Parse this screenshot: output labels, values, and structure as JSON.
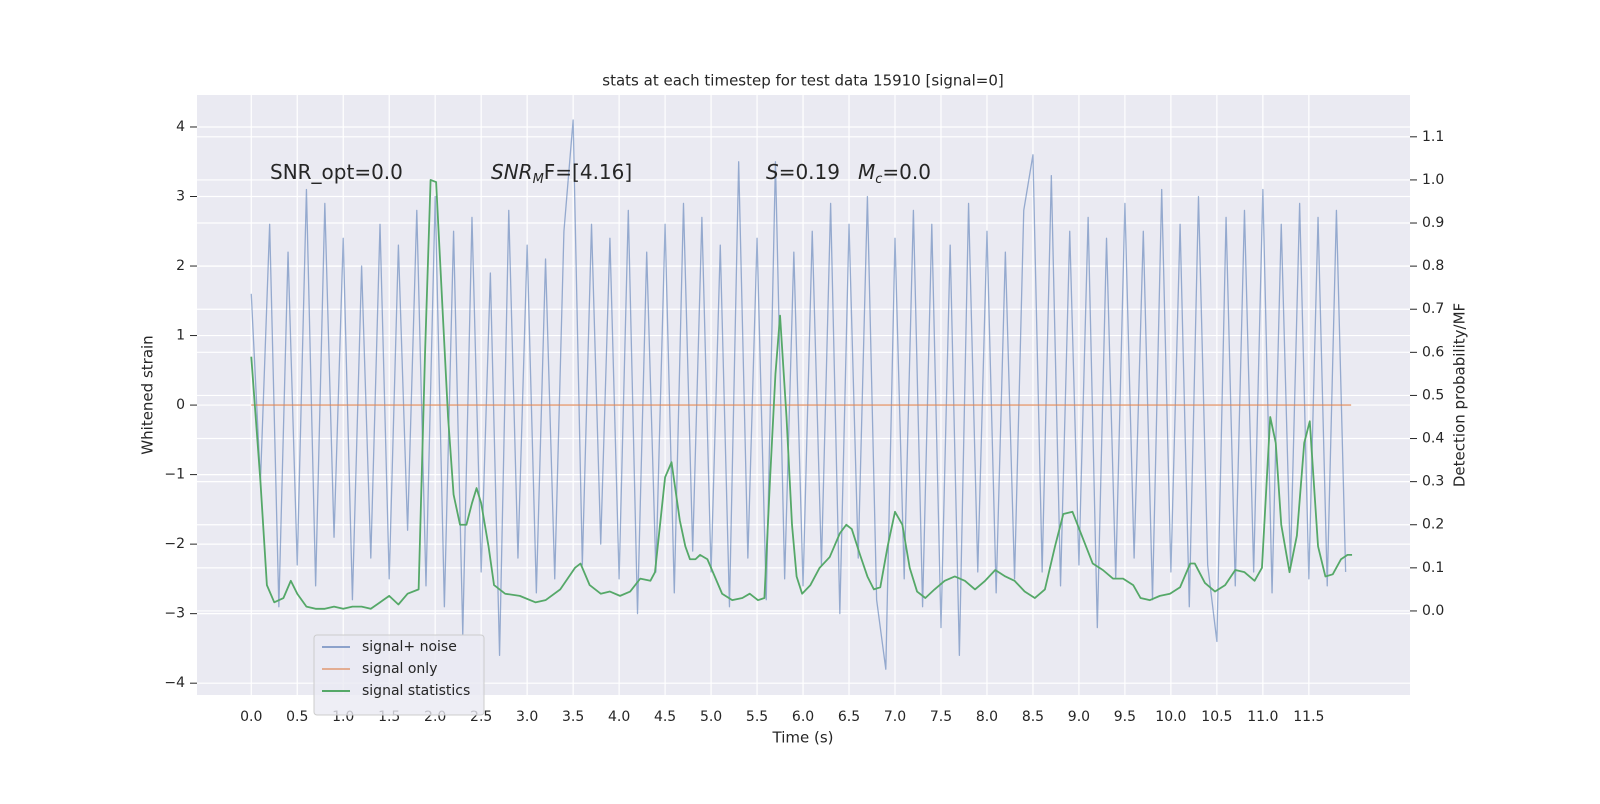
{
  "chart_data": {
    "type": "line",
    "title": "stats at each timestep for test data 15910 [signal=0]",
    "xlabel": "Time (s)",
    "ylabel": "Whitened strain",
    "y2label": "Detection probability/MF",
    "annotations": [
      {
        "base": "SNR_opt=0.0"
      },
      {
        "base": "SNR",
        "sub": "M",
        "tail": "F=[4.16]"
      },
      {
        "base": "S",
        "tail": "=0.19"
      },
      {
        "base": "M",
        "sub": "c",
        "tail": "=0.0"
      }
    ],
    "xlim": [
      -0.59,
      12.6
    ],
    "ylim": [
      -4.17,
      4.46
    ],
    "y2lim": [
      -0.195,
      1.197
    ],
    "xticks": [
      {
        "value": 0,
        "label": "0.0"
      },
      0.5,
      {
        "value": 1,
        "label": "1.0"
      },
      1.5,
      {
        "value": 2,
        "label": "2.0"
      },
      2.5,
      {
        "value": 3,
        "label": "3.0"
      },
      3.5,
      {
        "value": 4,
        "label": "4.0"
      },
      4.5,
      {
        "value": 5,
        "label": "5.0"
      },
      5.5,
      {
        "value": 6,
        "label": "6.0"
      },
      6.5,
      {
        "value": 7,
        "label": "7.0"
      },
      7.5,
      {
        "value": 8,
        "label": "8.0"
      },
      8.5,
      {
        "value": 9,
        "label": "9.0"
      },
      9.5,
      {
        "value": 10,
        "label": "10.0"
      },
      10.5,
      {
        "value": 11,
        "label": "11.0"
      },
      11.5
    ],
    "yticks": [
      {
        "value": -4,
        "label": "−4"
      },
      {
        "value": -3,
        "label": "−3"
      },
      {
        "value": -2,
        "label": "−2"
      },
      {
        "value": -1,
        "label": "−1"
      },
      0,
      1,
      2,
      3,
      4
    ],
    "y2ticks": [
      {
        "value": 0,
        "label": "0.0"
      },
      0.1,
      0.2,
      0.3,
      0.4,
      0.5,
      0.6,
      0.7,
      0.8,
      0.9,
      {
        "value": 1,
        "label": "1.0"
      },
      1.1
    ],
    "grid": true,
    "legend": "lower left",
    "series": [
      {
        "name": "signal+ noise",
        "color": "#4c72b0",
        "x": [
          0.0,
          0.1,
          0.2,
          0.3,
          0.4,
          0.5,
          0.6,
          0.7,
          0.8,
          0.9,
          1.0,
          1.1,
          1.2,
          1.3,
          1.4,
          1.5,
          1.6,
          1.7,
          1.8,
          1.9,
          2.0,
          2.1,
          2.2,
          2.3,
          2.4,
          2.5,
          2.6,
          2.7,
          2.8,
          2.9,
          3.0,
          3.1,
          3.2,
          3.3,
          3.4,
          3.5,
          3.6,
          3.7,
          3.8,
          3.9,
          4.0,
          4.1,
          4.2,
          4.3,
          4.4,
          4.5,
          4.6,
          4.7,
          4.8,
          4.9,
          5.0,
          5.1,
          5.2,
          5.3,
          5.4,
          5.5,
          5.6,
          5.7,
          5.8,
          5.9,
          6.0,
          6.1,
          6.2,
          6.3,
          6.4,
          6.5,
          6.6,
          6.7,
          6.8,
          6.9,
          7.0,
          7.1,
          7.2,
          7.3,
          7.4,
          7.5,
          7.6,
          7.7,
          7.8,
          7.9,
          8.0,
          8.1,
          8.2,
          8.3,
          8.4,
          8.5,
          8.6,
          8.7,
          8.8,
          8.9,
          9.0,
          9.1,
          9.2,
          9.3,
          9.4,
          9.5,
          9.6,
          9.7,
          9.8,
          9.9,
          10.0,
          10.1,
          10.2,
          10.3,
          10.4,
          10.5,
          10.6,
          10.7,
          10.8,
          10.9,
          11.0,
          11.1,
          11.2,
          11.3,
          11.4,
          11.5,
          11.6,
          11.7,
          11.8,
          11.9
        ],
        "values": [
          1.6,
          -1.1,
          2.6,
          -2.9,
          2.2,
          -2.3,
          3.1,
          -2.6,
          2.9,
          -1.9,
          2.4,
          -2.8,
          2.0,
          -2.2,
          2.6,
          -2.5,
          2.3,
          -1.8,
          2.8,
          -2.6,
          3.0,
          -2.9,
          2.5,
          -3.3,
          2.7,
          -2.4,
          1.9,
          -3.6,
          2.8,
          -2.2,
          2.3,
          -2.7,
          2.1,
          -2.5,
          2.5,
          4.1,
          -2.3,
          2.6,
          -2.0,
          2.4,
          -2.5,
          2.8,
          -3.0,
          2.2,
          -2.4,
          2.6,
          -2.7,
          2.9,
          -2.1,
          2.7,
          -2.4,
          2.3,
          -2.9,
          3.5,
          -2.2,
          2.4,
          -2.8,
          3.5,
          -2.5,
          2.2,
          -2.6,
          2.5,
          -2.3,
          2.9,
          -3.0,
          2.6,
          -2.2,
          3.0,
          -2.8,
          -3.8,
          2.4,
          -2.5,
          2.8,
          -2.9,
          2.6,
          -3.2,
          2.3,
          -3.6,
          2.9,
          -2.4,
          2.5,
          -2.7,
          2.2,
          -2.5,
          2.8,
          3.6,
          -2.4,
          3.3,
          -2.6,
          2.5,
          -2.3,
          2.7,
          -3.2,
          2.4,
          -2.5,
          2.9,
          -2.2,
          2.5,
          -2.8,
          3.1,
          -2.4,
          2.6,
          -2.9,
          3.0,
          -2.3,
          -3.4,
          2.7,
          -2.6,
          2.8,
          -2.4,
          3.1,
          -2.7,
          2.6,
          -2.3,
          2.9,
          -2.5,
          2.7,
          -2.6,
          2.8,
          -2.4
        ]
      },
      {
        "name": "signal only",
        "color": "#dd8452",
        "x": [
          0.0,
          11.96
        ],
        "values": [
          0,
          0
        ]
      },
      {
        "name": "signal statistics",
        "color": "#55a868",
        "axis": "y2",
        "x": [
          0.0,
          0.1,
          0.17,
          0.25,
          0.35,
          0.43,
          0.5,
          0.6,
          0.7,
          0.8,
          0.9,
          1.0,
          1.1,
          1.2,
          1.3,
          1.4,
          1.5,
          1.6,
          1.7,
          1.82,
          1.89,
          1.95,
          2.01,
          2.08,
          2.14,
          2.2,
          2.27,
          2.34,
          2.4,
          2.45,
          2.5,
          2.58,
          2.64,
          2.76,
          2.92,
          3.09,
          3.2,
          3.36,
          3.52,
          3.58,
          3.68,
          3.8,
          3.9,
          4.01,
          4.12,
          4.23,
          4.34,
          4.39,
          4.5,
          4.57,
          4.66,
          4.72,
          4.77,
          4.83,
          4.88,
          4.96,
          5.04,
          5.12,
          5.23,
          5.34,
          5.42,
          5.51,
          5.58,
          5.64,
          5.7,
          5.75,
          5.82,
          5.88,
          5.93,
          5.99,
          6.08,
          6.18,
          6.29,
          6.4,
          6.47,
          6.53,
          6.62,
          6.7,
          6.77,
          6.84,
          6.92,
          7.0,
          7.08,
          7.16,
          7.24,
          7.33,
          7.43,
          7.54,
          7.65,
          7.76,
          7.87,
          7.98,
          8.09,
          8.2,
          8.3,
          8.41,
          8.52,
          8.63,
          8.74,
          8.83,
          8.93,
          9.04,
          9.15,
          9.26,
          9.37,
          9.48,
          9.59,
          9.67,
          9.77,
          9.88,
          9.99,
          10.1,
          10.21,
          10.26,
          10.37,
          10.48,
          10.59,
          10.7,
          10.8,
          10.91,
          10.99,
          11.08,
          11.14,
          11.2,
          11.29,
          11.37,
          11.45,
          11.51,
          11.6,
          11.68,
          11.76,
          11.85,
          11.92,
          11.97
        ],
        "values": [
          0.59,
          0.3,
          0.06,
          0.02,
          0.03,
          0.07,
          0.04,
          0.01,
          0.005,
          0.005,
          0.01,
          0.005,
          0.01,
          0.01,
          0.005,
          0.02,
          0.035,
          0.015,
          0.04,
          0.05,
          0.6,
          1.0,
          0.995,
          0.7,
          0.45,
          0.27,
          0.2,
          0.2,
          0.25,
          0.285,
          0.25,
          0.15,
          0.06,
          0.04,
          0.035,
          0.02,
          0.025,
          0.05,
          0.1,
          0.11,
          0.06,
          0.04,
          0.045,
          0.035,
          0.045,
          0.075,
          0.07,
          0.09,
          0.31,
          0.345,
          0.21,
          0.15,
          0.12,
          0.12,
          0.13,
          0.12,
          0.08,
          0.04,
          0.025,
          0.03,
          0.04,
          0.025,
          0.03,
          0.3,
          0.55,
          0.685,
          0.45,
          0.2,
          0.08,
          0.04,
          0.06,
          0.1,
          0.125,
          0.18,
          0.2,
          0.19,
          0.13,
          0.08,
          0.05,
          0.055,
          0.15,
          0.23,
          0.2,
          0.1,
          0.045,
          0.03,
          0.05,
          0.07,
          0.08,
          0.07,
          0.05,
          0.07,
          0.095,
          0.08,
          0.07,
          0.045,
          0.03,
          0.05,
          0.15,
          0.225,
          0.23,
          0.17,
          0.11,
          0.095,
          0.075,
          0.075,
          0.06,
          0.03,
          0.025,
          0.035,
          0.04,
          0.055,
          0.11,
          0.11,
          0.065,
          0.045,
          0.06,
          0.095,
          0.09,
          0.07,
          0.1,
          0.45,
          0.39,
          0.2,
          0.09,
          0.175,
          0.39,
          0.44,
          0.15,
          0.08,
          0.085,
          0.12,
          0.13,
          0.13
        ]
      }
    ]
  }
}
